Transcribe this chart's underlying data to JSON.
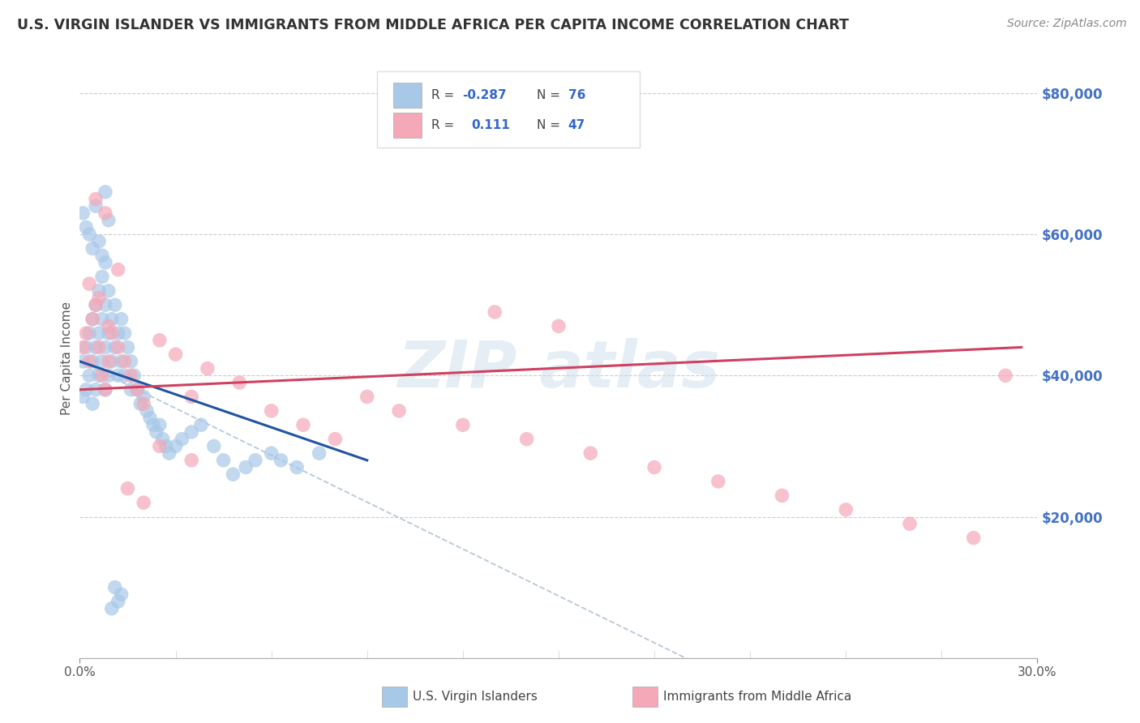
{
  "title": "U.S. VIRGIN ISLANDER VS IMMIGRANTS FROM MIDDLE AFRICA PER CAPITA INCOME CORRELATION CHART",
  "source": "Source: ZipAtlas.com",
  "ylabel": "Per Capita Income",
  "xlim": [
    0.0,
    0.3
  ],
  "ylim": [
    0,
    85000
  ],
  "xtick_positions": [
    0.0,
    0.3
  ],
  "xtick_labels": [
    "0.0%",
    "30.0%"
  ],
  "xtick_minor": [
    0.03,
    0.06,
    0.09,
    0.12,
    0.15,
    0.18,
    0.21,
    0.24,
    0.27
  ],
  "yticks": [
    0,
    20000,
    40000,
    60000,
    80000
  ],
  "ytick_labels_right": [
    "",
    "$20,000",
    "$40,000",
    "$60,000",
    "$80,000"
  ],
  "grid_color": "#cccccc",
  "bg_color": "#ffffff",
  "legend_R1": "-0.287",
  "legend_N1": "76",
  "legend_R2": "0.111",
  "legend_N2": "47",
  "color_blue": "#a8c8e8",
  "color_pink": "#f4a8b8",
  "color_blue_line": "#2155a0",
  "color_pink_line": "#d04060",
  "color_dashed": "#b8c8d8",
  "series1_name": "U.S. Virgin Islanders",
  "series2_name": "Immigrants from Middle Africa",
  "blue_scatter_x": [
    0.001,
    0.001,
    0.002,
    0.002,
    0.003,
    0.003,
    0.004,
    0.004,
    0.004,
    0.005,
    0.005,
    0.005,
    0.006,
    0.006,
    0.006,
    0.007,
    0.007,
    0.007,
    0.008,
    0.008,
    0.008,
    0.008,
    0.009,
    0.009,
    0.009,
    0.01,
    0.01,
    0.011,
    0.011,
    0.012,
    0.012,
    0.013,
    0.013,
    0.014,
    0.014,
    0.015,
    0.016,
    0.016,
    0.017,
    0.018,
    0.019,
    0.02,
    0.021,
    0.022,
    0.023,
    0.024,
    0.025,
    0.026,
    0.027,
    0.028,
    0.03,
    0.032,
    0.035,
    0.038,
    0.042,
    0.045,
    0.048,
    0.052,
    0.055,
    0.06,
    0.063,
    0.068,
    0.075,
    0.001,
    0.002,
    0.003,
    0.004,
    0.005,
    0.006,
    0.007,
    0.008,
    0.009,
    0.01,
    0.011,
    0.012,
    0.013
  ],
  "blue_scatter_y": [
    42000,
    37000,
    44000,
    38000,
    46000,
    40000,
    48000,
    42000,
    36000,
    50000,
    44000,
    38000,
    52000,
    46000,
    40000,
    54000,
    48000,
    42000,
    56000,
    50000,
    44000,
    38000,
    52000,
    46000,
    40000,
    48000,
    42000,
    50000,
    44000,
    46000,
    40000,
    48000,
    42000,
    46000,
    40000,
    44000,
    38000,
    42000,
    40000,
    38000,
    36000,
    37000,
    35000,
    34000,
    33000,
    32000,
    33000,
    31000,
    30000,
    29000,
    30000,
    31000,
    32000,
    33000,
    30000,
    28000,
    26000,
    27000,
    28000,
    29000,
    28000,
    27000,
    29000,
    63000,
    61000,
    60000,
    58000,
    64000,
    59000,
    57000,
    66000,
    62000,
    7000,
    10000,
    8000,
    9000
  ],
  "pink_scatter_x": [
    0.001,
    0.002,
    0.003,
    0.004,
    0.005,
    0.006,
    0.007,
    0.008,
    0.009,
    0.01,
    0.012,
    0.014,
    0.016,
    0.018,
    0.02,
    0.025,
    0.03,
    0.035,
    0.04,
    0.05,
    0.06,
    0.07,
    0.08,
    0.09,
    0.1,
    0.12,
    0.14,
    0.16,
    0.18,
    0.2,
    0.22,
    0.24,
    0.26,
    0.28,
    0.29,
    0.003,
    0.006,
    0.009,
    0.012,
    0.025,
    0.035,
    0.15,
    0.13,
    0.005,
    0.008,
    0.015,
    0.02
  ],
  "pink_scatter_y": [
    44000,
    46000,
    42000,
    48000,
    50000,
    44000,
    40000,
    38000,
    42000,
    46000,
    44000,
    42000,
    40000,
    38000,
    36000,
    45000,
    43000,
    37000,
    41000,
    39000,
    35000,
    33000,
    31000,
    37000,
    35000,
    33000,
    31000,
    29000,
    27000,
    25000,
    23000,
    21000,
    19000,
    17000,
    40000,
    53000,
    51000,
    47000,
    55000,
    30000,
    28000,
    47000,
    49000,
    65000,
    63000,
    24000,
    22000
  ],
  "blue_line_x": [
    0.0,
    0.09
  ],
  "blue_line_y": [
    42000,
    28000
  ],
  "pink_line_x": [
    0.0,
    0.295
  ],
  "pink_line_y": [
    38000,
    44000
  ],
  "dashed_line_x": [
    0.0,
    0.28
  ],
  "dashed_line_y": [
    42000,
    -20000
  ]
}
